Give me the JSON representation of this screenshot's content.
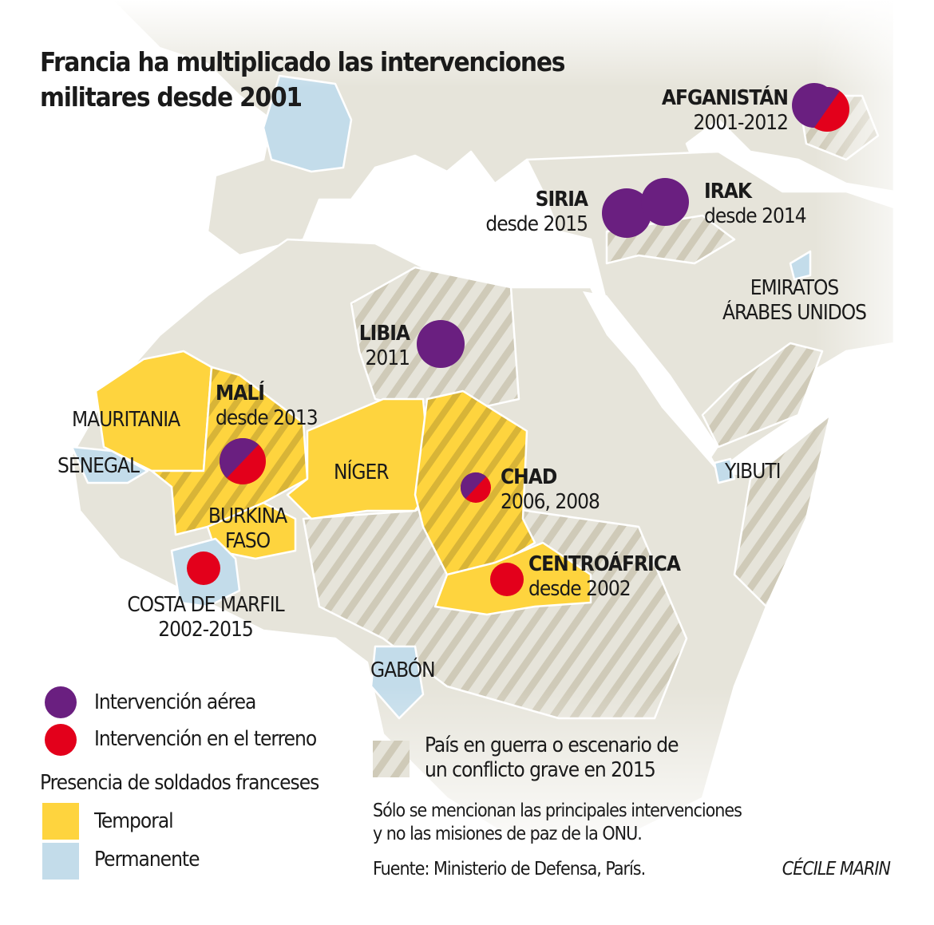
{
  "title": [
    "Francia ha multiplicado las intervenciones",
    "militares desde 2001"
  ],
  "colors": {
    "land": "#e6e4da",
    "temporal": "#fed43e",
    "permanente": "#c3dcea",
    "air": "#6a1f80",
    "ground": "#e3001b",
    "hatch": "#cfcab8",
    "border": "#ffffff"
  },
  "places": {
    "afganistan": {
      "name": "AFGANISTÁN",
      "detail": "2001-2012",
      "intervention": [
        "air",
        "ground"
      ]
    },
    "siria": {
      "name": "SIRIA",
      "detail": "desde 2015",
      "intervention": [
        "air"
      ]
    },
    "irak": {
      "name": "IRAK",
      "detail": "desde 2014",
      "intervention": [
        "air"
      ]
    },
    "emiratos": {
      "name": [
        "EMIRATOS",
        "ÁRABES UNIDOS"
      ],
      "presence": "permanente"
    },
    "libia": {
      "name": "LIBIA",
      "detail": "2011",
      "intervention": [
        "air"
      ]
    },
    "mali": {
      "name": "MALÍ",
      "detail": "desde 2013",
      "intervention": [
        "air",
        "ground"
      ],
      "presence": "temporal"
    },
    "mauritania": {
      "name": "MAURITANIA",
      "presence": "temporal"
    },
    "senegal": {
      "name": "SENEGAL",
      "presence": "permanente"
    },
    "niger": {
      "name": "NÍGER",
      "presence": "temporal"
    },
    "chad": {
      "name": "CHAD",
      "detail": "2006, 2008",
      "intervention": [
        "air",
        "ground"
      ],
      "presence": "temporal"
    },
    "burkina": {
      "name": [
        "BURKINA",
        "FASO"
      ],
      "presence": "temporal"
    },
    "yibuti": {
      "name": "YIBUTI",
      "presence": "permanente"
    },
    "centroafrica": {
      "name": "CENTROÁFRICA",
      "detail": "desde 2002",
      "intervention": [
        "ground"
      ],
      "presence": "temporal"
    },
    "costa_marfil": {
      "name": "COSTA DE MARFIL",
      "detail": "2002-2015",
      "intervention": [
        "ground"
      ],
      "presence": "permanente"
    },
    "gabon": {
      "name": "GABÓN",
      "presence": "permanente"
    }
  },
  "legend": {
    "air": "Intervención aérea",
    "ground": "Intervención en el terreno",
    "presence_title": "Presencia de soldados franceses",
    "temporal": "Temporal",
    "permanente": "Permanente",
    "conflict": [
      "País en guerra o escenario de",
      "un conflicto grave en 2015"
    ]
  },
  "note": [
    "Sólo se mencionan las principales intervenciones",
    "y no las misiones de paz de la ONU."
  ],
  "source": "Fuente: Ministerio de Defensa, París.",
  "credit": "CÉCILE MARIN"
}
